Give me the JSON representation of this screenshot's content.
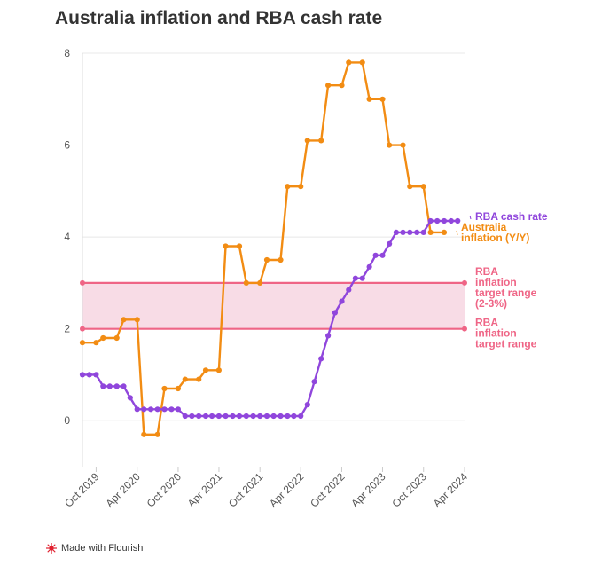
{
  "chart_data": {
    "type": "line",
    "title": "Australia inflation and RBA cash rate",
    "xlabel": "",
    "ylabel": "",
    "ylim": [
      -1,
      8
    ],
    "y_ticks": [
      0,
      2,
      4,
      6,
      8
    ],
    "y_tick_labels": [
      "0",
      "2",
      "4",
      "6",
      "8"
    ],
    "x_range": [
      "2019-08-01",
      "2024-04-01"
    ],
    "x_ticks": [
      "2019-10-01",
      "2020-04-01",
      "2020-10-01",
      "2021-04-01",
      "2021-10-01",
      "2022-04-01",
      "2022-10-01",
      "2023-04-01",
      "2023-10-01",
      "2024-04-01"
    ],
    "x_tick_labels": [
      "Oct 2019",
      "Apr 2020",
      "Oct 2020",
      "Apr 2021",
      "Oct 2021",
      "Apr 2022",
      "Oct 2022",
      "Apr 2023",
      "Oct 2023",
      "Apr 2024"
    ],
    "bands": [
      {
        "name": "RBA inflation target range",
        "from": 2,
        "to": 3,
        "color": "#f4c9d9"
      }
    ],
    "reference_lines": [
      {
        "name": "RBA inflation target range (2-3%)",
        "value": 3,
        "color": "#ef6586",
        "label": "RBA inflation target range (2-3%)"
      },
      {
        "name": "RBA inflation target range",
        "value": 2,
        "color": "#ef6586",
        "label": "RBA inflation target range"
      }
    ],
    "series": [
      {
        "name": "Australia inflation (Y/Y)",
        "label": "Australia inflation (Y/Y)",
        "color": "#f28c13",
        "x": [
          "2019-08-01",
          "2019-10-01",
          "2019-11-01",
          "2020-01-01",
          "2020-02-01",
          "2020-04-01",
          "2020-05-01",
          "2020-07-01",
          "2020-08-01",
          "2020-10-01",
          "2020-11-01",
          "2021-01-01",
          "2021-02-01",
          "2021-04-01",
          "2021-05-01",
          "2021-07-01",
          "2021-08-01",
          "2021-10-01",
          "2021-11-01",
          "2022-01-01",
          "2022-02-01",
          "2022-04-01",
          "2022-05-01",
          "2022-07-01",
          "2022-08-01",
          "2022-10-01",
          "2022-11-01",
          "2023-01-01",
          "2023-02-01",
          "2023-04-01",
          "2023-05-01",
          "2023-07-01",
          "2023-08-01",
          "2023-10-01",
          "2023-11-01",
          "2024-01-01"
        ],
        "values": [
          1.7,
          1.7,
          1.8,
          1.8,
          2.2,
          2.2,
          -0.3,
          -0.3,
          0.7,
          0.7,
          0.9,
          0.9,
          1.1,
          1.1,
          3.8,
          3.8,
          3.0,
          3.0,
          3.5,
          3.5,
          5.1,
          5.1,
          6.1,
          6.1,
          7.3,
          7.3,
          7.8,
          7.8,
          7.0,
          7.0,
          6.0,
          6.0,
          5.1,
          5.1,
          4.1,
          4.1
        ]
      },
      {
        "name": "RBA cash rate",
        "label": "RBA cash rate",
        "color": "#9046dc",
        "x": [
          "2019-08-01",
          "2019-09-01",
          "2019-10-01",
          "2019-11-01",
          "2019-12-01",
          "2020-01-01",
          "2020-02-01",
          "2020-03-01",
          "2020-04-01",
          "2020-05-01",
          "2020-06-01",
          "2020-07-01",
          "2020-08-01",
          "2020-09-01",
          "2020-10-01",
          "2020-11-01",
          "2020-12-01",
          "2021-01-01",
          "2021-02-01",
          "2021-03-01",
          "2021-04-01",
          "2021-05-01",
          "2021-06-01",
          "2021-07-01",
          "2021-08-01",
          "2021-09-01",
          "2021-10-01",
          "2021-11-01",
          "2021-12-01",
          "2022-01-01",
          "2022-02-01",
          "2022-03-01",
          "2022-04-01",
          "2022-05-01",
          "2022-06-01",
          "2022-07-01",
          "2022-08-01",
          "2022-09-01",
          "2022-10-01",
          "2022-11-01",
          "2022-12-01",
          "2023-01-01",
          "2023-02-01",
          "2023-03-01",
          "2023-04-01",
          "2023-05-01",
          "2023-06-01",
          "2023-07-01",
          "2023-08-01",
          "2023-09-01",
          "2023-10-01",
          "2023-11-01",
          "2023-12-01",
          "2024-01-01",
          "2024-02-01",
          "2024-03-01"
        ],
        "values": [
          1.0,
          1.0,
          1.0,
          0.75,
          0.75,
          0.75,
          0.75,
          0.5,
          0.25,
          0.25,
          0.25,
          0.25,
          0.25,
          0.25,
          0.25,
          0.1,
          0.1,
          0.1,
          0.1,
          0.1,
          0.1,
          0.1,
          0.1,
          0.1,
          0.1,
          0.1,
          0.1,
          0.1,
          0.1,
          0.1,
          0.1,
          0.1,
          0.1,
          0.35,
          0.85,
          1.35,
          1.85,
          2.35,
          2.6,
          2.85,
          3.1,
          3.1,
          3.35,
          3.6,
          3.6,
          3.85,
          4.1,
          4.1,
          4.1,
          4.1,
          4.1,
          4.35,
          4.35,
          4.35,
          4.35,
          4.35
        ]
      }
    ]
  },
  "footer": {
    "text": "Made with Flourish"
  }
}
